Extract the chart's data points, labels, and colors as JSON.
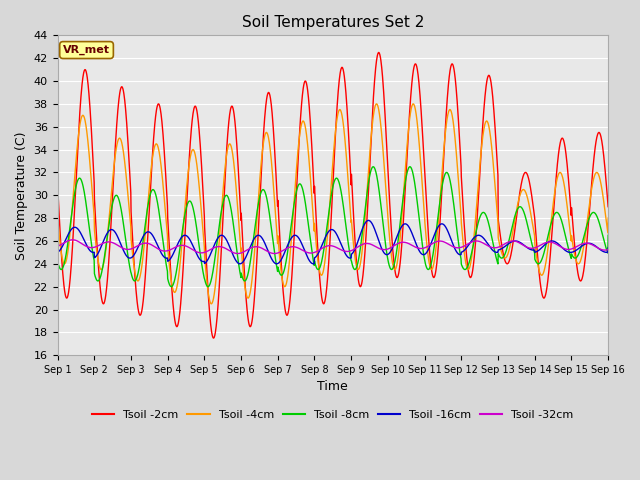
{
  "title": "Soil Temperatures Set 2",
  "xlabel": "Time",
  "ylabel": "Soil Temperature (C)",
  "ylim": [
    16,
    44
  ],
  "yticks": [
    16,
    18,
    20,
    22,
    24,
    26,
    28,
    30,
    32,
    34,
    36,
    38,
    40,
    42,
    44
  ],
  "xlim": [
    0,
    15
  ],
  "xtick_labels": [
    "Sep 1",
    "Sep 2",
    "Sep 3",
    "Sep 4",
    "Sep 5",
    "Sep 6",
    "Sep 7",
    "Sep 8",
    "Sep 9",
    "Sep 10",
    "Sep 11",
    "Sep 12",
    "Sep 13",
    "Sep 14",
    "Sep 15",
    "Sep 16"
  ],
  "colors": {
    "Tsoil -2cm": "#ff0000",
    "Tsoil -4cm": "#ff9900",
    "Tsoil -8cm": "#00cc00",
    "Tsoil -16cm": "#0000cc",
    "Tsoil -32cm": "#cc00cc"
  },
  "background_color": "#e8e8e8",
  "grid_color": "#ffffff",
  "annotation_text": "VR_met",
  "annotation_bg": "#ffff99",
  "annotation_border": "#996600",
  "peaks_2cm": [
    41.0,
    39.5,
    38.0,
    37.8,
    37.8,
    39.0,
    40.0,
    41.2,
    42.5,
    41.5,
    41.5,
    40.5,
    32.0,
    35.0,
    35.5
  ],
  "valleys_2cm": [
    21.0,
    20.5,
    19.5,
    18.5,
    17.5,
    18.5,
    19.5,
    20.5,
    22.0,
    22.8,
    22.8,
    22.8,
    24.0,
    21.0,
    22.5
  ],
  "peaks_4cm": [
    37.0,
    35.0,
    34.5,
    34.0,
    34.5,
    35.5,
    36.5,
    37.5,
    38.0,
    38.0,
    37.5,
    36.5,
    30.5,
    32.0,
    32.0
  ],
  "valleys_4cm": [
    24.0,
    23.5,
    22.5,
    21.5,
    20.5,
    21.0,
    22.0,
    23.0,
    23.5,
    23.5,
    23.5,
    23.5,
    24.5,
    23.0,
    24.0
  ],
  "peaks_8cm": [
    31.5,
    30.0,
    30.5,
    29.5,
    30.0,
    30.5,
    31.0,
    31.5,
    32.5,
    32.5,
    32.0,
    28.5,
    29.0,
    28.5,
    28.5
  ],
  "valleys_8cm": [
    23.5,
    22.5,
    22.5,
    22.0,
    22.0,
    22.5,
    23.0,
    23.5,
    23.5,
    23.5,
    23.5,
    23.5,
    24.5,
    24.0,
    24.5
  ],
  "peaks_16cm": [
    27.2,
    27.0,
    26.8,
    26.5,
    26.5,
    26.5,
    26.5,
    27.0,
    27.8,
    27.5,
    27.5,
    26.5,
    26.0,
    26.0,
    25.8
  ],
  "valleys_16cm": [
    25.0,
    24.5,
    24.5,
    24.2,
    24.0,
    24.0,
    24.0,
    24.5,
    24.8,
    24.8,
    24.8,
    25.0,
    25.2,
    25.0,
    25.0
  ],
  "mean_32cm": [
    25.8,
    25.6,
    25.5,
    25.3,
    25.2,
    25.2,
    25.2,
    25.3,
    25.5,
    25.6,
    25.7,
    25.7,
    25.7,
    25.6,
    25.5
  ]
}
